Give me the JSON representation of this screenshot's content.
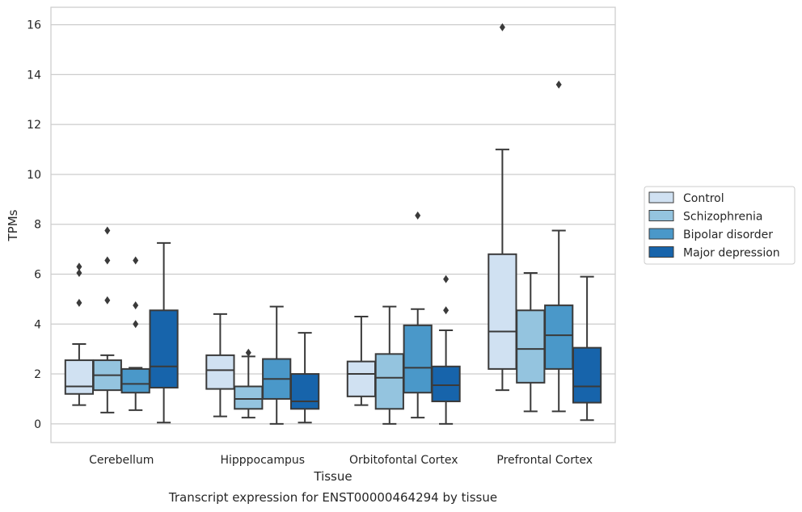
{
  "chart_data": {
    "type": "boxplot",
    "caption": "Transcript expression for ENST00000464294 by tissue",
    "xlabel": "Tissue",
    "ylabel": "TPMs",
    "ylim": [
      -0.75,
      16.7
    ],
    "yticks": [
      0,
      2,
      4,
      6,
      8,
      10,
      12,
      14,
      16
    ],
    "grid": "horizontal",
    "legend_position": "right",
    "categories": [
      "Cerebellum",
      "Hipppocampus",
      "Orbitofontal Cortex",
      "Prefrontal Cortex"
    ],
    "series": [
      {
        "name": "Control",
        "color": "#d0e1f2",
        "boxes": [
          {
            "low": 0.75,
            "q1": 1.2,
            "median": 1.5,
            "q3": 2.55,
            "high": 3.2,
            "outliers": [
              4.85,
              6.05,
              6.3
            ]
          },
          {
            "low": 0.3,
            "q1": 1.4,
            "median": 2.15,
            "q3": 2.75,
            "high": 4.4,
            "outliers": []
          },
          {
            "low": 0.75,
            "q1": 1.1,
            "median": 2.0,
            "q3": 2.5,
            "high": 4.3,
            "outliers": []
          },
          {
            "low": 1.35,
            "q1": 2.2,
            "median": 3.7,
            "q3": 6.8,
            "high": 11.0,
            "outliers": [
              15.9
            ]
          }
        ]
      },
      {
        "name": "Schizophrenia",
        "color": "#94c4df",
        "boxes": [
          {
            "low": 0.45,
            "q1": 1.35,
            "median": 1.95,
            "q3": 2.55,
            "high": 2.75,
            "outliers": [
              4.95,
              6.55,
              7.75
            ]
          },
          {
            "low": 0.25,
            "q1": 0.6,
            "median": 1.0,
            "q3": 1.5,
            "high": 2.7,
            "outliers": [
              2.85
            ]
          },
          {
            "low": 0.0,
            "q1": 0.6,
            "median": 1.85,
            "q3": 2.8,
            "high": 4.7,
            "outliers": []
          },
          {
            "low": 0.5,
            "q1": 1.65,
            "median": 3.0,
            "q3": 4.55,
            "high": 6.05,
            "outliers": []
          }
        ]
      },
      {
        "name": "Bipolar disorder",
        "color": "#4a98c9",
        "boxes": [
          {
            "low": 0.55,
            "q1": 1.25,
            "median": 1.6,
            "q3": 2.2,
            "high": 2.25,
            "outliers": [
              4.0,
              4.75,
              6.55
            ]
          },
          {
            "low": 0.0,
            "q1": 1.0,
            "median": 1.8,
            "q3": 2.6,
            "high": 4.7,
            "outliers": []
          },
          {
            "low": 0.25,
            "q1": 1.25,
            "median": 2.25,
            "q3": 3.95,
            "high": 4.6,
            "outliers": [
              8.35
            ]
          },
          {
            "low": 0.5,
            "q1": 2.2,
            "median": 3.55,
            "q3": 4.75,
            "high": 7.75,
            "outliers": [
              13.6
            ]
          }
        ]
      },
      {
        "name": "Major depression",
        "color": "#1764ab",
        "boxes": [
          {
            "low": 0.05,
            "q1": 1.45,
            "median": 2.3,
            "q3": 4.55,
            "high": 7.25,
            "outliers": []
          },
          {
            "low": 0.05,
            "q1": 0.6,
            "median": 0.9,
            "q3": 2.0,
            "high": 3.65,
            "outliers": []
          },
          {
            "low": 0.0,
            "q1": 0.9,
            "median": 1.55,
            "q3": 2.3,
            "high": 3.75,
            "outliers": [
              4.55,
              5.8
            ]
          },
          {
            "low": 0.15,
            "q1": 0.85,
            "median": 1.5,
            "q3": 3.05,
            "high": 5.9,
            "outliers": []
          }
        ]
      }
    ]
  }
}
